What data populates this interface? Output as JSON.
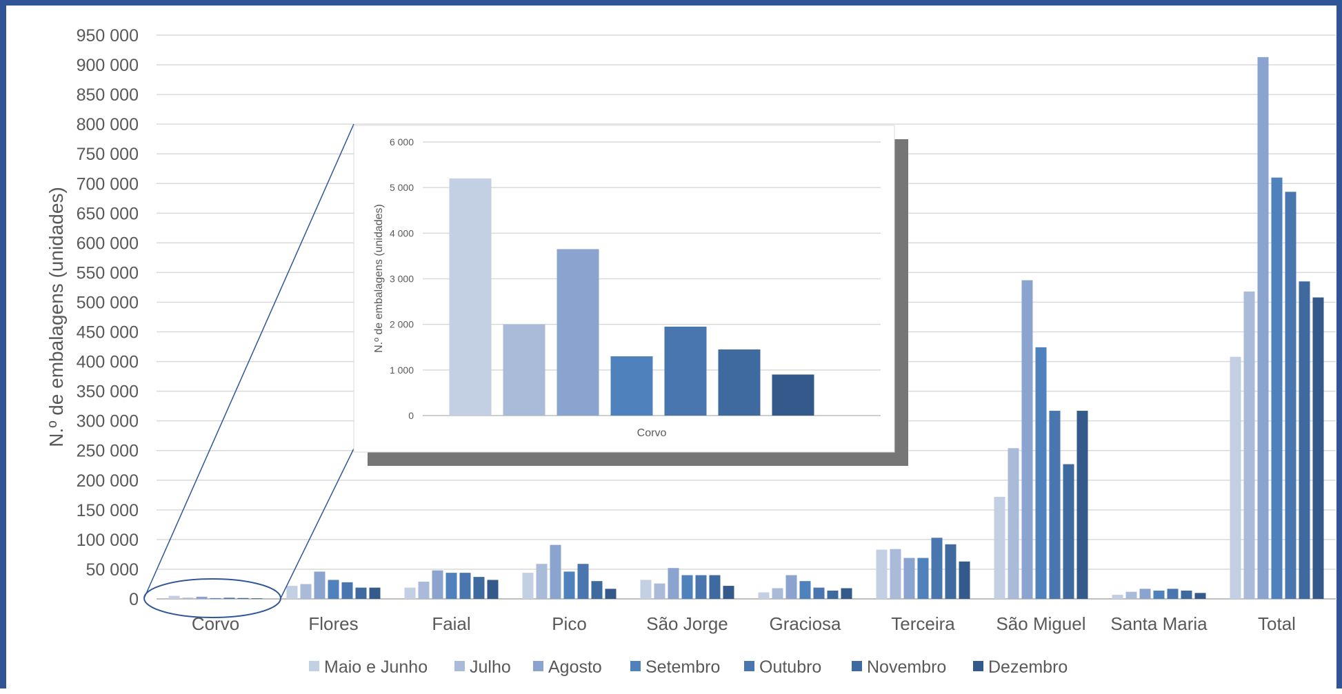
{
  "chart_data": [
    {
      "type": "bar",
      "ylabel": "N.º de embalagens (unidades)",
      "ylim": [
        0,
        950000
      ],
      "yticks": [
        "0",
        "50 000",
        "100 000",
        "150 000",
        "200 000",
        "250 000",
        "300 000",
        "350 000",
        "400 000",
        "450 000",
        "500 000",
        "550 000",
        "600 000",
        "650 000",
        "700 000",
        "750 000",
        "800 000",
        "850 000",
        "900 000",
        "950 000"
      ],
      "grid": true,
      "legend": "bottom",
      "categories": [
        "Corvo",
        "Flores",
        "Faial",
        "Pico",
        "São Jorge",
        "Graciosa",
        "Terceira",
        "São Miguel",
        "Santa Maria",
        "Total"
      ],
      "series": [
        {
          "name": "Maio e Junho",
          "color": "#c3cfe2",
          "values": [
            5200,
            22000,
            19000,
            44000,
            32000,
            11000,
            83000,
            172000,
            7000,
            408000
          ]
        },
        {
          "name": "Julho",
          "color": "#a9bbd9",
          "values": [
            2000,
            25000,
            29000,
            59000,
            26000,
            18000,
            84000,
            254000,
            12000,
            518000
          ]
        },
        {
          "name": "Agosto",
          "color": "#8aa4cf",
          "values": [
            3650,
            46000,
            48000,
            91000,
            52000,
            40000,
            69000,
            537000,
            17000,
            913000
          ]
        },
        {
          "name": "Setembro",
          "color": "#4f81bd",
          "values": [
            1300,
            32000,
            44000,
            46000,
            40000,
            30000,
            69000,
            424000,
            14000,
            710000
          ]
        },
        {
          "name": "Outubro",
          "color": "#4a76b0",
          "values": [
            1950,
            28000,
            44000,
            59000,
            40000,
            19000,
            103000,
            317000,
            17000,
            686000
          ]
        },
        {
          "name": "Novembro",
          "color": "#3e6aa0",
          "values": [
            1450,
            19000,
            37000,
            30000,
            40000,
            14000,
            92000,
            227000,
            14000,
            535000
          ]
        },
        {
          "name": "Dezembro",
          "color": "#345a8c",
          "values": [
            900,
            19000,
            32000,
            17000,
            22000,
            18000,
            63000,
            317000,
            10000,
            508000
          ]
        }
      ]
    },
    {
      "type": "bar",
      "ylabel": "N.º de embalagens (unidades)",
      "ylim": [
        0,
        6000
      ],
      "yticks": [
        "0",
        "1 000",
        "2 000",
        "3 000",
        "4 000",
        "5 000",
        "6 000"
      ],
      "grid": true,
      "categories": [
        "Corvo"
      ],
      "series": [
        {
          "name": "Maio e Junho",
          "color": "#c3cfe2",
          "values": [
            5200
          ]
        },
        {
          "name": "Julho",
          "color": "#a9bbd9",
          "values": [
            2000
          ]
        },
        {
          "name": "Agosto",
          "color": "#8aa4cf",
          "values": [
            3650
          ]
        },
        {
          "name": "Setembro",
          "color": "#4f81bd",
          "values": [
            1300
          ]
        },
        {
          "name": "Outubro",
          "color": "#4a76b0",
          "values": [
            1950
          ]
        },
        {
          "name": "Novembro",
          "color": "#3e6aa0",
          "values": [
            1450
          ]
        },
        {
          "name": "Dezembro",
          "color": "#345a8c",
          "values": [
            900
          ]
        }
      ]
    }
  ]
}
